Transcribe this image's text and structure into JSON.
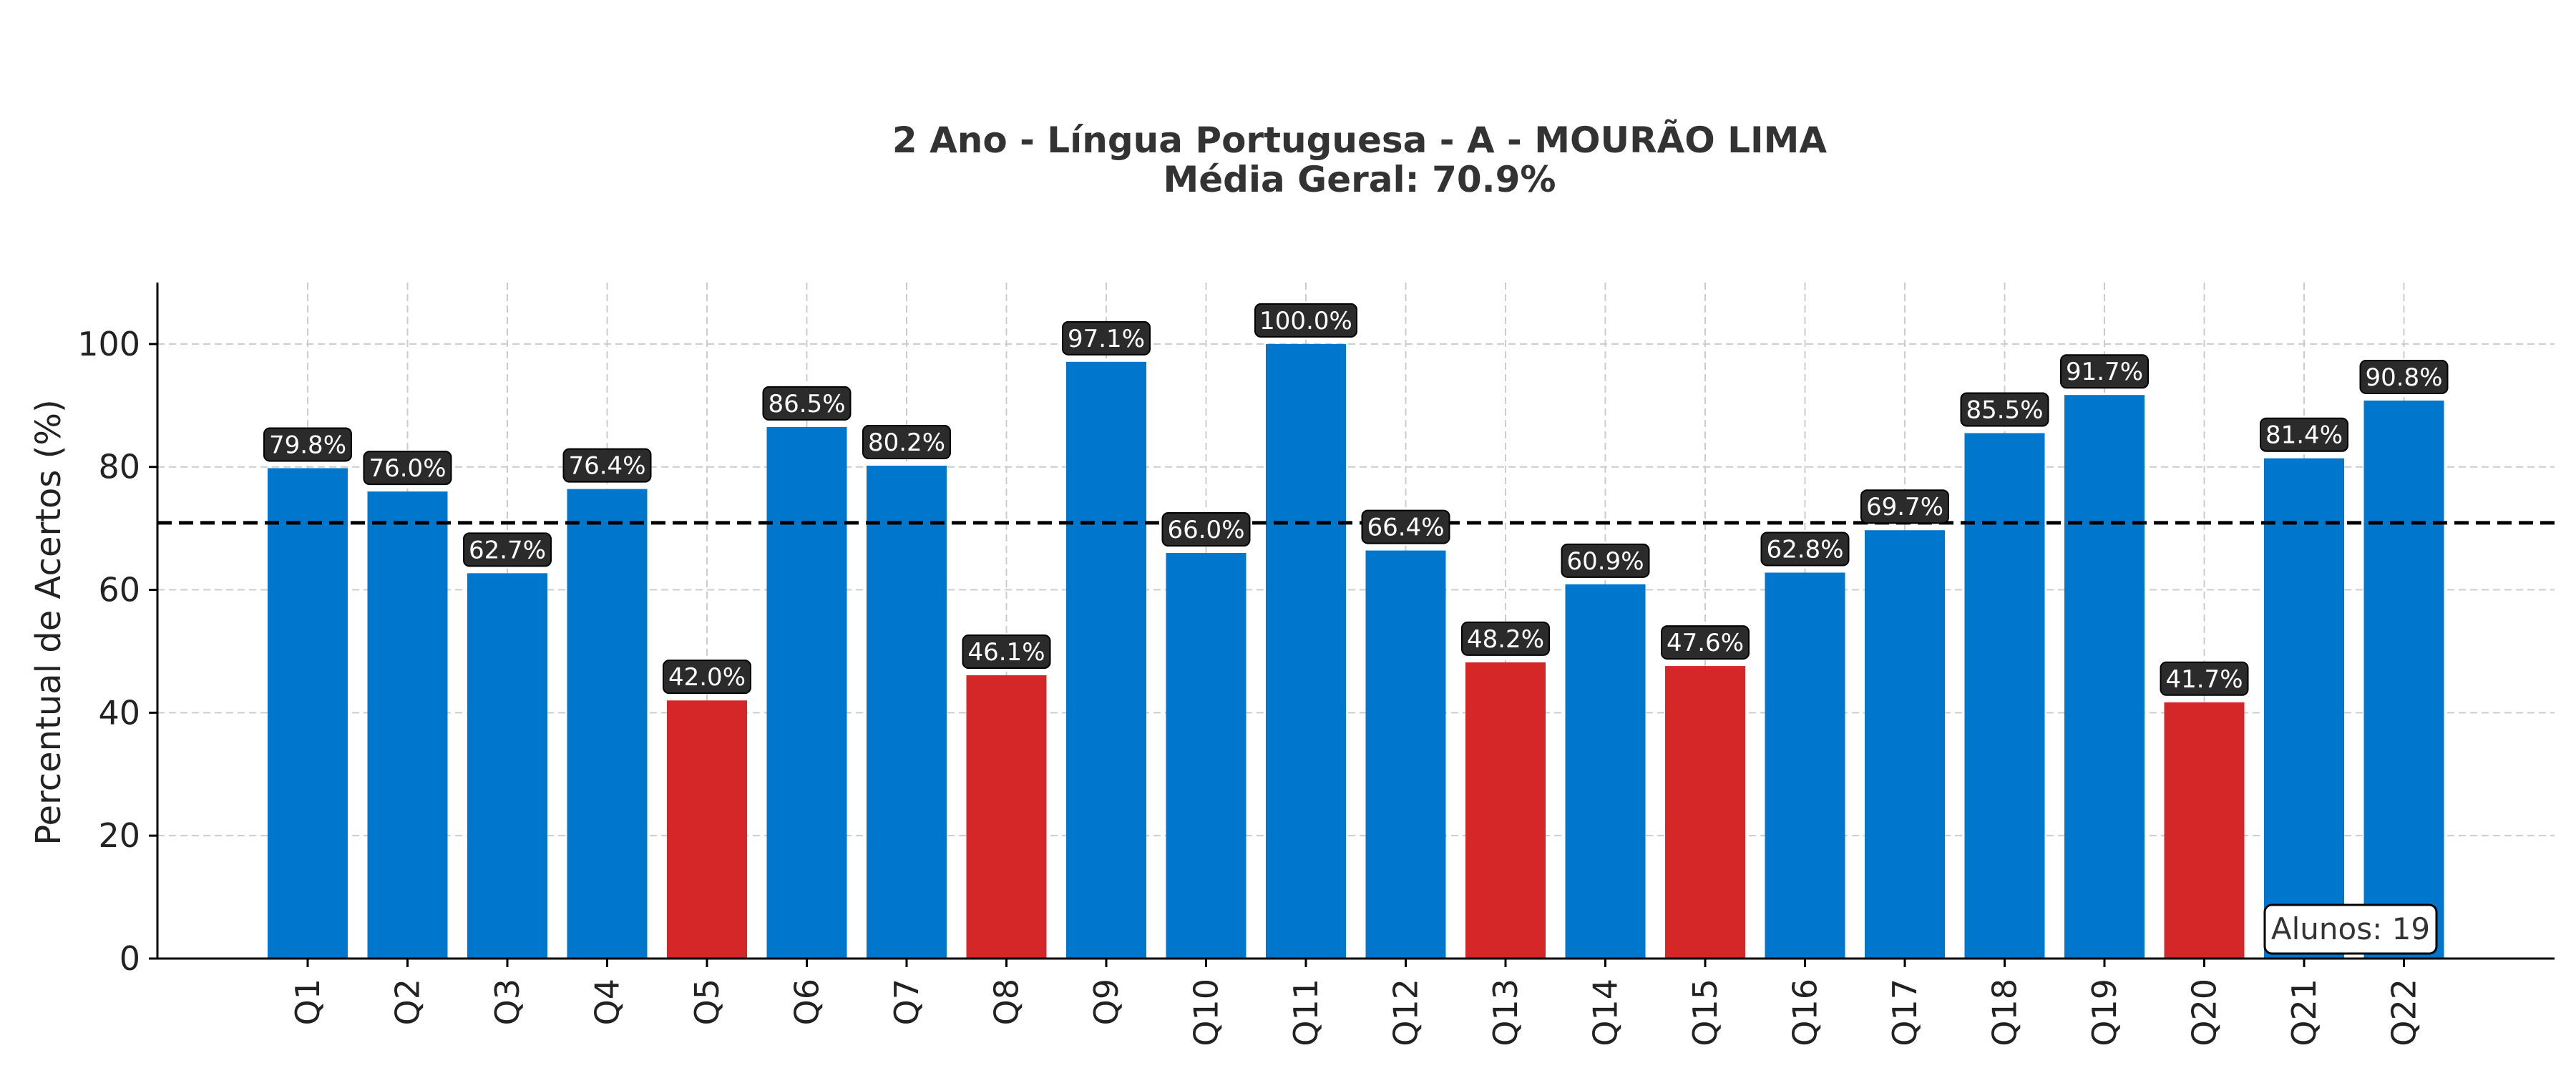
{
  "chart_data": {
    "type": "bar",
    "title_line1": "2 Ano - Língua Portuguesa - A - MOURÃO LIMA",
    "title_line2": "Média Geral: 70.9%",
    "ylabel": "Percentual de Acertos (%)",
    "xlabel": "",
    "ylim": [
      0,
      110
    ],
    "yticks": [
      0,
      20,
      40,
      60,
      80,
      100
    ],
    "grid": true,
    "mean_line": 70.9,
    "threshold": 50,
    "colors": {
      "above": "#0077cc",
      "below": "#d62728",
      "label_bg": "#2b2b2b",
      "mean_line": "#000000"
    },
    "categories": [
      "Q1",
      "Q2",
      "Q3",
      "Q4",
      "Q5",
      "Q6",
      "Q7",
      "Q8",
      "Q9",
      "Q10",
      "Q11",
      "Q12",
      "Q13",
      "Q14",
      "Q15",
      "Q16",
      "Q17",
      "Q18",
      "Q19",
      "Q20",
      "Q21",
      "Q22"
    ],
    "values": [
      79.8,
      76.0,
      62.7,
      76.4,
      42.0,
      86.5,
      80.2,
      46.1,
      97.1,
      66.0,
      100.0,
      66.4,
      48.2,
      60.9,
      47.6,
      62.8,
      69.7,
      85.5,
      91.7,
      41.7,
      81.4,
      90.8
    ],
    "data_labels": [
      "79.8%",
      "76.0%",
      "62.7%",
      "76.4%",
      "42.0%",
      "86.5%",
      "80.2%",
      "46.1%",
      "97.1%",
      "66.0%",
      "100.0%",
      "66.4%",
      "48.2%",
      "60.9%",
      "47.6%",
      "62.8%",
      "69.7%",
      "85.5%",
      "91.7%",
      "41.7%",
      "81.4%",
      "90.8%"
    ],
    "annotation": "Alunos: 19"
  }
}
